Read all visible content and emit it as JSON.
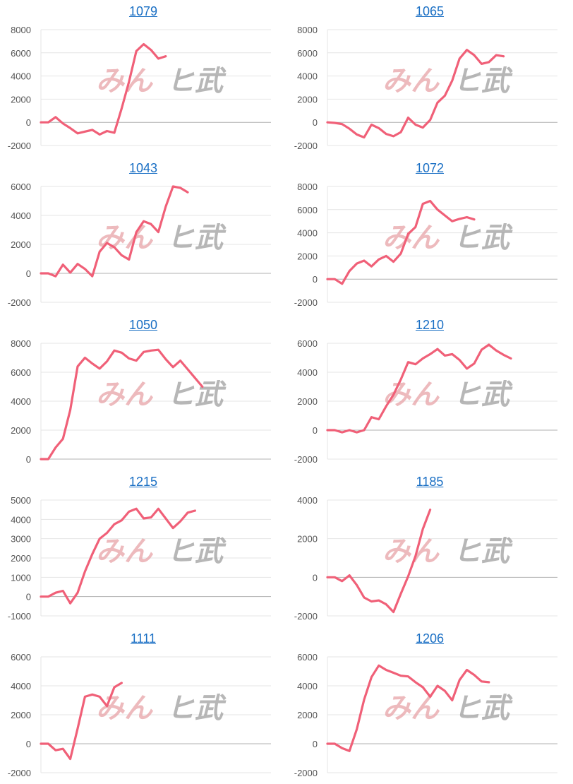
{
  "watermark": {
    "left": "みん",
    "right": "ヒ武"
  },
  "colors": {
    "line": "#f06078",
    "grid": "#e4e4e4",
    "zero_line": "#b0b0b0",
    "title": "#1a6fc4"
  },
  "chart_data": [
    {
      "type": "line",
      "title": "1079",
      "ylim": [
        -2000,
        8000
      ],
      "yticks": [
        -2000,
        0,
        2000,
        4000,
        6000,
        8000
      ],
      "values": [
        0,
        0,
        450,
        -100,
        -500,
        -950,
        -800,
        -650,
        -1050,
        -750,
        -900,
        1200,
        3500,
        6150,
        6750,
        6250,
        5500,
        5700
      ]
    },
    {
      "type": "line",
      "title": "1065",
      "ylim": [
        -2000,
        8000
      ],
      "yticks": [
        -2000,
        0,
        2000,
        4000,
        6000,
        8000
      ],
      "values": [
        0,
        -50,
        -150,
        -550,
        -1050,
        -1300,
        -200,
        -500,
        -1000,
        -1200,
        -850,
        400,
        -200,
        -450,
        200,
        1700,
        2300,
        3600,
        5500,
        6250,
        5800,
        5050,
        5200,
        5800,
        5700
      ]
    },
    {
      "type": "line",
      "title": "1043",
      "ylim": [
        -2000,
        6000
      ],
      "yticks": [
        -2000,
        0,
        2000,
        4000,
        6000
      ],
      "values": [
        0,
        0,
        -200,
        600,
        50,
        650,
        300,
        -200,
        1500,
        2100,
        1800,
        1250,
        950,
        2850,
        3600,
        3400,
        2850,
        4600,
        6000,
        5900,
        5600
      ]
    },
    {
      "type": "line",
      "title": "1072",
      "ylim": [
        -2000,
        8000
      ],
      "yticks": [
        -2000,
        0,
        2000,
        4000,
        6000,
        8000
      ],
      "values": [
        0,
        0,
        -400,
        700,
        1350,
        1600,
        1100,
        1700,
        2000,
        1500,
        2200,
        3900,
        4500,
        6500,
        6750,
        6000,
        5500,
        5000,
        5200,
        5350,
        5150
      ]
    },
    {
      "type": "line",
      "title": "1050",
      "ylim": [
        0,
        8000
      ],
      "yticks": [
        0,
        2000,
        4000,
        6000,
        8000
      ],
      "values": [
        0,
        0,
        800,
        1400,
        3400,
        6400,
        7000,
        6600,
        6250,
        6750,
        7500,
        7350,
        6950,
        6800,
        7400,
        7500,
        7550,
        6900,
        6350,
        6800,
        6200,
        5600,
        5000
      ]
    },
    {
      "type": "line",
      "title": "1210",
      "ylim": [
        -2000,
        6000
      ],
      "yticks": [
        -2000,
        0,
        2000,
        4000,
        6000
      ],
      "values": [
        0,
        0,
        -150,
        0,
        -150,
        0,
        900,
        750,
        1650,
        2450,
        3500,
        4700,
        4550,
        4950,
        5250,
        5600,
        5150,
        5250,
        4850,
        4250,
        4600,
        5550,
        5900,
        5500,
        5200,
        4950
      ]
    },
    {
      "type": "line",
      "title": "1215",
      "ylim": [
        -1000,
        5000
      ],
      "yticks": [
        -1000,
        0,
        1000,
        2000,
        3000,
        4000,
        5000
      ],
      "values": [
        0,
        0,
        200,
        300,
        -350,
        200,
        1300,
        2200,
        3000,
        3300,
        3750,
        3950,
        4400,
        4550,
        4050,
        4100,
        4550,
        4050,
        3550,
        3900,
        4350,
        4450
      ]
    },
    {
      "type": "line",
      "title": "1185",
      "ylim": [
        -2000,
        4000
      ],
      "yticks": [
        -2000,
        0,
        2000,
        4000
      ],
      "values": [
        0,
        0,
        -200,
        100,
        -400,
        -1050,
        -1250,
        -1200,
        -1400,
        -1800,
        -850,
        50,
        1100,
        2500,
        3500
      ]
    },
    {
      "type": "line",
      "title": "1111",
      "ylim": [
        -2000,
        6000
      ],
      "yticks": [
        -2000,
        0,
        2000,
        4000,
        6000
      ],
      "values": [
        0,
        0,
        -450,
        -350,
        -1050,
        1050,
        3250,
        3400,
        3250,
        2600,
        3900,
        4200
      ]
    },
    {
      "type": "line",
      "title": "1206",
      "ylim": [
        -2000,
        6000
      ],
      "yticks": [
        -2000,
        0,
        2000,
        4000,
        6000
      ],
      "values": [
        0,
        0,
        -300,
        -500,
        1000,
        3050,
        4600,
        5400,
        5100,
        4900,
        4700,
        4650,
        4250,
        3900,
        3250,
        4000,
        3650,
        3000,
        4400,
        5100,
        4750,
        4300,
        4250
      ]
    }
  ]
}
